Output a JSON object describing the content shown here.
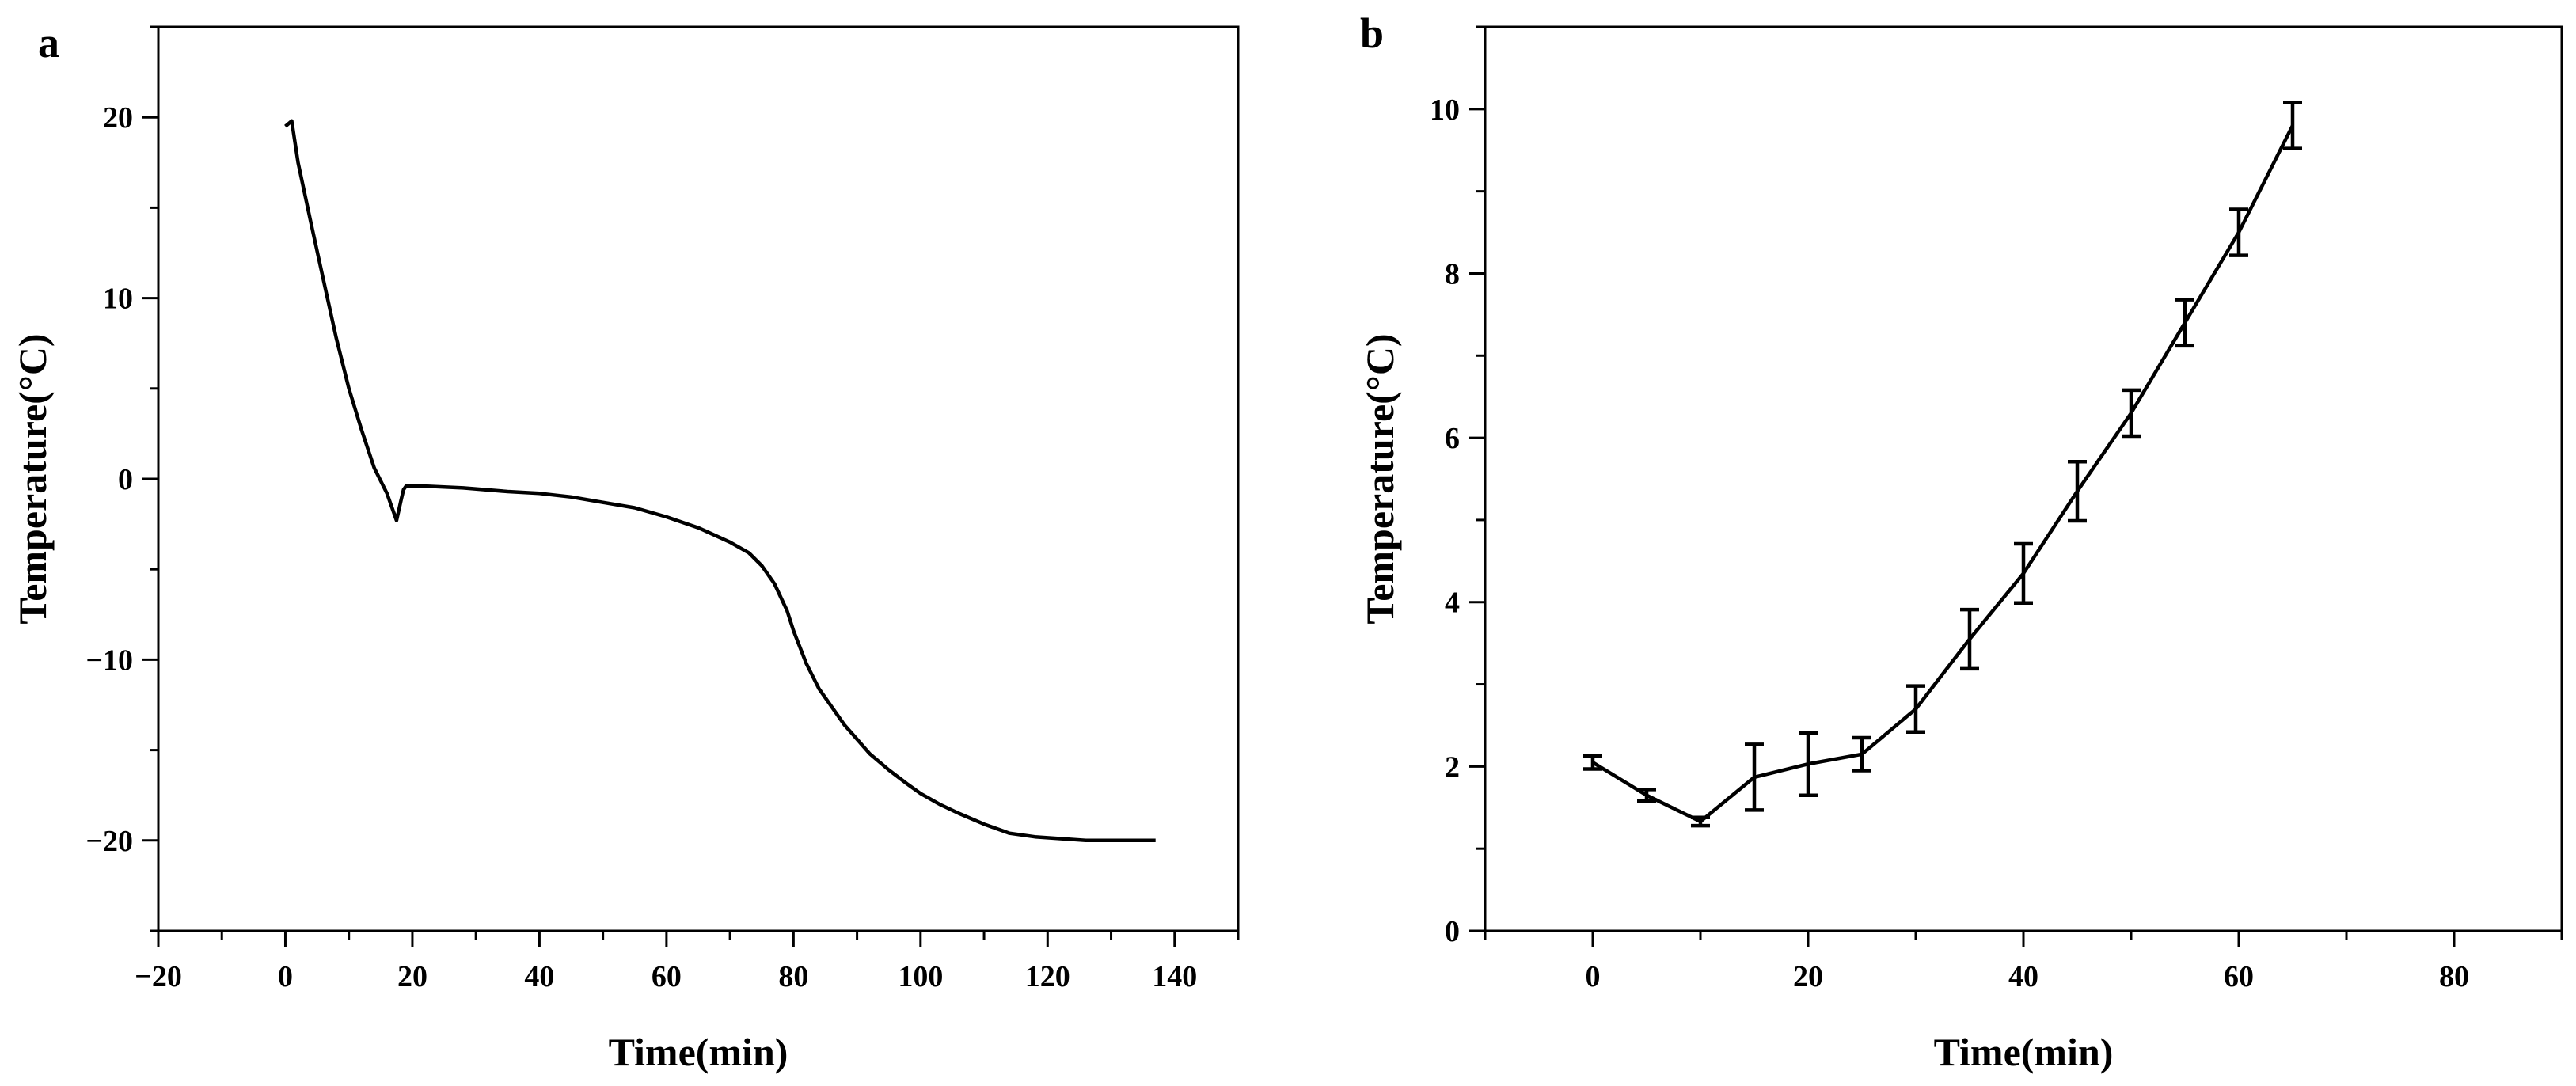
{
  "chart_data": [
    {
      "panel": "a",
      "type": "line",
      "title": "",
      "xlabel": "Time(min)",
      "ylabel": "Temperature(°C)",
      "xlim": [
        -20,
        150
      ],
      "ylim": [
        -25,
        25
      ],
      "xticks": [
        -20,
        0,
        20,
        40,
        60,
        80,
        100,
        120,
        140
      ],
      "xtick_labels": [
        "−20",
        "0",
        "20",
        "40",
        "60",
        "80",
        "100",
        "120",
        "140"
      ],
      "yticks": [
        -20,
        -10,
        0,
        10,
        20
      ],
      "ytick_labels": [
        "−20",
        "−10",
        "0",
        "10",
        "20"
      ],
      "grid": false,
      "series": [
        {
          "name": "Temperature",
          "color": "#000000",
          "points": [
            [
              0,
              19.5
            ],
            [
              1,
              19.8
            ],
            [
              2,
              17.5
            ],
            [
              4,
              14.2
            ],
            [
              6,
              11.0
            ],
            [
              8,
              7.8
            ],
            [
              10,
              5.0
            ],
            [
              12,
              2.7
            ],
            [
              14,
              0.6
            ],
            [
              16,
              -0.8
            ],
            [
              17.5,
              -2.3
            ],
            [
              18.2,
              -1.2
            ],
            [
              18.6,
              -0.6
            ],
            [
              19,
              -0.4
            ],
            [
              22,
              -0.4
            ],
            [
              28,
              -0.5
            ],
            [
              35,
              -0.7
            ],
            [
              40,
              -0.8
            ],
            [
              45,
              -1.0
            ],
            [
              50,
              -1.3
            ],
            [
              55,
              -1.6
            ],
            [
              60,
              -2.1
            ],
            [
              65,
              -2.7
            ],
            [
              70,
              -3.5
            ],
            [
              73,
              -4.1
            ],
            [
              75,
              -4.8
            ],
            [
              77,
              -5.8
            ],
            [
              79,
              -7.3
            ],
            [
              80,
              -8.4
            ],
            [
              82,
              -10.2
            ],
            [
              84,
              -11.6
            ],
            [
              86,
              -12.6
            ],
            [
              88,
              -13.6
            ],
            [
              90,
              -14.4
            ],
            [
              92,
              -15.2
            ],
            [
              95,
              -16.1
            ],
            [
              98,
              -16.9
            ],
            [
              100,
              -17.4
            ],
            [
              103,
              -18.0
            ],
            [
              106,
              -18.5
            ],
            [
              110,
              -19.1
            ],
            [
              114,
              -19.6
            ],
            [
              118,
              -19.8
            ],
            [
              122,
              -19.9
            ],
            [
              126,
              -20.0
            ],
            [
              130,
              -20.0
            ],
            [
              137,
              -20.0
            ]
          ]
        }
      ]
    },
    {
      "panel": "b",
      "type": "line",
      "title": "",
      "xlabel": "Time(min)",
      "ylabel": "Temperature(°C)",
      "xlim": [
        -10,
        90
      ],
      "ylim": [
        0,
        11
      ],
      "xticks": [
        0,
        20,
        40,
        60,
        80
      ],
      "xtick_labels": [
        "0",
        "20",
        "40",
        "60",
        "80"
      ],
      "yticks": [
        0,
        2,
        4,
        6,
        8,
        10
      ],
      "ytick_labels": [
        "0",
        "2",
        "4",
        "6",
        "8",
        "10"
      ],
      "grid": false,
      "series": [
        {
          "name": "Temperature",
          "color": "#000000",
          "x": [
            0,
            5,
            10,
            15,
            20,
            25,
            30,
            35,
            40,
            45,
            50,
            55,
            60,
            65
          ],
          "y": [
            2.05,
            1.65,
            1.33,
            1.87,
            2.03,
            2.15,
            2.7,
            3.55,
            4.35,
            5.35,
            6.3,
            7.4,
            8.5,
            9.8
          ],
          "yerr": [
            0.08,
            0.07,
            0.05,
            0.4,
            0.38,
            0.2,
            0.28,
            0.36,
            0.36,
            0.36,
            0.28,
            0.28,
            0.28,
            0.28
          ]
        }
      ]
    }
  ]
}
